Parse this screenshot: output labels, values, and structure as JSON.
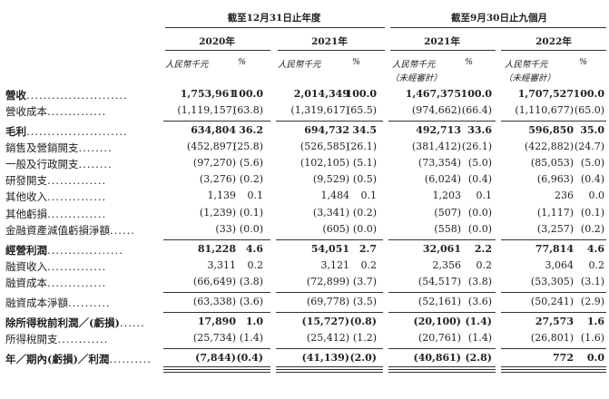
{
  "header": {
    "group1_title": "截至12月31日止年度",
    "group2_title": "截至9月30日止九個月",
    "years": [
      "2020年",
      "2021年",
      "2021年",
      "2022年"
    ],
    "unit_label": "人民幣千元",
    "pct_label": "%",
    "unaudited": "（未經審計）"
  },
  "rows": [
    {
      "label": "營收",
      "dots": "........................",
      "bold": true,
      "vals": [
        "1,753,961",
        "100.0",
        "2,014,349",
        "100.0",
        "1,467,375",
        "100.0",
        "1,707,527",
        "100.0"
      ]
    },
    {
      "label": "營收成本",
      "dots": "..............",
      "bold": false,
      "vals": [
        "(1,119,157)",
        "(63.8)",
        "(1,319,617)",
        "(65.5)",
        "(974,662)",
        "(66.4)",
        "(1,110,677)",
        "(65.0)"
      ]
    },
    {
      "label": "毛利",
      "dots": "........................",
      "bold": true,
      "vals": [
        "634,804",
        "36.2",
        "694,732",
        "34.5",
        "492,713",
        "33.6",
        "596,850",
        "35.0"
      ]
    },
    {
      "label": "銷售及營銷開支",
      "dots": "........",
      "bold": false,
      "vals": [
        "(452,897)",
        "(25.8)",
        "(526,585)",
        "(26.1)",
        "(381,412)",
        "(26.1)",
        "(422,882)",
        "(24.7)"
      ]
    },
    {
      "label": "一般及行政開支",
      "dots": "........",
      "bold": false,
      "vals": [
        "(97,270)",
        "(5.6)",
        "(102,105)",
        "(5.1)",
        "(73,354)",
        "(5.0)",
        "(85,053)",
        "(5.0)"
      ]
    },
    {
      "label": "研發開支",
      "dots": "..............",
      "bold": false,
      "vals": [
        "(3,276)",
        "(0.2)",
        "(9,529)",
        "(0.5)",
        "(6,024)",
        "(0.4)",
        "(6,963)",
        "(0.4)"
      ]
    },
    {
      "label": "其他收入",
      "dots": "..............",
      "bold": false,
      "vals": [
        "1,139",
        "0.1",
        "1,484",
        "0.1",
        "1,203",
        "0.1",
        "236",
        "0.0"
      ]
    },
    {
      "label": "其他虧損",
      "dots": "..............",
      "bold": false,
      "vals": [
        "(1,239)",
        "(0.1)",
        "(3,341)",
        "(0.2)",
        "(507)",
        "(0.0)",
        "(1,117)",
        "(0.1)"
      ]
    },
    {
      "label": "金融資產減值虧損淨額",
      "dots": "......",
      "bold": false,
      "vals": [
        "(33)",
        "(0.0)",
        "(605)",
        "(0.0)",
        "(558)",
        "(0.0)",
        "(3,257)",
        "(0.2)"
      ]
    },
    {
      "label": "經營利潤",
      "dots": "..................",
      "bold": true,
      "vals": [
        "81,228",
        "4.6",
        "54,051",
        "2.7",
        "32,061",
        "2.2",
        "77,814",
        "4.6"
      ]
    },
    {
      "label": "融資收入",
      "dots": "..............",
      "bold": false,
      "vals": [
        "3,311",
        "0.2",
        "3,121",
        "0.2",
        "2,356",
        "0.2",
        "3,064",
        "0.2"
      ]
    },
    {
      "label": "融資成本",
      "dots": "..............",
      "bold": false,
      "vals": [
        "(66,649)",
        "(3.8)",
        "(72,899)",
        "(3.7)",
        "(54,517)",
        "(3.8)",
        "(53,305)",
        "(3.1)"
      ]
    },
    {
      "label": "融資成本淨額",
      "dots": "..........",
      "bold": false,
      "vals": [
        "(63,338)",
        "(3.6)",
        "(69,778)",
        "(3.5)",
        "(52,161)",
        "(3.6)",
        "(50,241)",
        "(2.9)"
      ]
    },
    {
      "label": "除所得稅前利潤／(虧損)",
      "dots": "......",
      "bold": true,
      "vals": [
        "17,890",
        "1.0",
        "(15,727)",
        "(0.8)",
        "(20,100)",
        "(1.4)",
        "27,573",
        "1.6"
      ]
    },
    {
      "label": "所得稅開支",
      "dots": "............",
      "bold": false,
      "vals": [
        "(25,734)",
        "(1.4)",
        "(25,412)",
        "(1.2)",
        "(20,761)",
        "(1.4)",
        "(26,801)",
        "(1.6)"
      ]
    },
    {
      "label": "年／期內(虧損)／利潤",
      "dots": "..........",
      "bold": true,
      "vals": [
        "(7,844)",
        "(0.4)",
        "(41,139)",
        "(2.0)",
        "(40,861)",
        "(2.8)",
        "772",
        "0.0"
      ]
    }
  ]
}
